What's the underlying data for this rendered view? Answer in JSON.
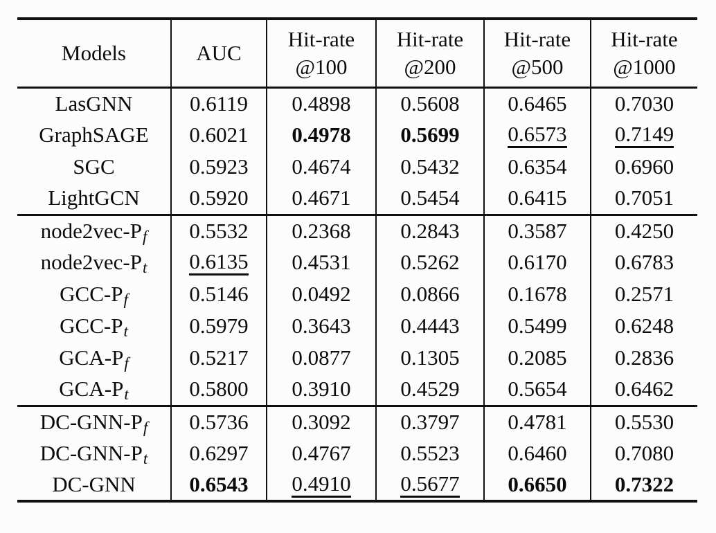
{
  "colors": {
    "text": "#0b0b0b",
    "rule": "#101010",
    "background": "#fcfcfc"
  },
  "header": {
    "models": "Models",
    "auc": "AUC",
    "hitrate_label": "Hit-rate",
    "hitrate_at": [
      "@100",
      "@200",
      "@500",
      "@1000"
    ]
  },
  "groups": [
    {
      "rows": [
        {
          "model": "LasGNN",
          "sub": "",
          "cells": [
            [
              "0.6119",
              "normal"
            ],
            [
              "0.4898",
              "normal"
            ],
            [
              "0.5608",
              "normal"
            ],
            [
              "0.6465",
              "normal"
            ],
            [
              "0.7030",
              "normal"
            ]
          ]
        },
        {
          "model": "GraphSAGE",
          "sub": "",
          "cells": [
            [
              "0.6021",
              "normal"
            ],
            [
              "0.4978",
              "bold"
            ],
            [
              "0.5699",
              "bold"
            ],
            [
              "0.6573",
              "underline"
            ],
            [
              "0.7149",
              "underline"
            ]
          ]
        },
        {
          "model": "SGC",
          "sub": "",
          "cells": [
            [
              "0.5923",
              "normal"
            ],
            [
              "0.4674",
              "normal"
            ],
            [
              "0.5432",
              "normal"
            ],
            [
              "0.6354",
              "normal"
            ],
            [
              "0.6960",
              "normal"
            ]
          ]
        },
        {
          "model": "LightGCN",
          "sub": "",
          "cells": [
            [
              "0.5920",
              "normal"
            ],
            [
              "0.4671",
              "normal"
            ],
            [
              "0.5454",
              "normal"
            ],
            [
              "0.6415",
              "normal"
            ],
            [
              "0.7051",
              "normal"
            ]
          ]
        }
      ]
    },
    {
      "rows": [
        {
          "model": "node2vec-P",
          "sub": "f",
          "cells": [
            [
              "0.5532",
              "normal"
            ],
            [
              "0.2368",
              "normal"
            ],
            [
              "0.2843",
              "normal"
            ],
            [
              "0.3587",
              "normal"
            ],
            [
              "0.4250",
              "normal"
            ]
          ]
        },
        {
          "model": "node2vec-P",
          "sub": "t",
          "cells": [
            [
              "0.6135",
              "underline"
            ],
            [
              "0.4531",
              "normal"
            ],
            [
              "0.5262",
              "normal"
            ],
            [
              "0.6170",
              "normal"
            ],
            [
              "0.6783",
              "normal"
            ]
          ]
        },
        {
          "model": "GCC-P",
          "sub": "f",
          "cells": [
            [
              "0.5146",
              "normal"
            ],
            [
              "0.0492",
              "normal"
            ],
            [
              "0.0866",
              "normal"
            ],
            [
              "0.1678",
              "normal"
            ],
            [
              "0.2571",
              "normal"
            ]
          ]
        },
        {
          "model": "GCC-P",
          "sub": "t",
          "cells": [
            [
              "0.5979",
              "normal"
            ],
            [
              "0.3643",
              "normal"
            ],
            [
              "0.4443",
              "normal"
            ],
            [
              "0.5499",
              "normal"
            ],
            [
              "0.6248",
              "normal"
            ]
          ]
        },
        {
          "model": "GCA-P",
          "sub": "f",
          "cells": [
            [
              "0.5217",
              "normal"
            ],
            [
              "0.0877",
              "normal"
            ],
            [
              "0.1305",
              "normal"
            ],
            [
              "0.2085",
              "normal"
            ],
            [
              "0.2836",
              "normal"
            ]
          ]
        },
        {
          "model": "GCA-P",
          "sub": "t",
          "cells": [
            [
              "0.5800",
              "normal"
            ],
            [
              "0.3910",
              "normal"
            ],
            [
              "0.4529",
              "normal"
            ],
            [
              "0.5654",
              "normal"
            ],
            [
              "0.6462",
              "normal"
            ]
          ]
        }
      ]
    },
    {
      "rows": [
        {
          "model": "DC-GNN-P",
          "sub": "f",
          "cells": [
            [
              "0.5736",
              "normal"
            ],
            [
              "0.3092",
              "normal"
            ],
            [
              "0.3797",
              "normal"
            ],
            [
              "0.4781",
              "normal"
            ],
            [
              "0.5530",
              "normal"
            ]
          ]
        },
        {
          "model": "DC-GNN-P",
          "sub": "t",
          "cells": [
            [
              "0.6297",
              "normal"
            ],
            [
              "0.4767",
              "normal"
            ],
            [
              "0.5523",
              "normal"
            ],
            [
              "0.6460",
              "normal"
            ],
            [
              "0.7080",
              "normal"
            ]
          ]
        },
        {
          "model": "DC-GNN",
          "sub": "",
          "cells": [
            [
              "0.6543",
              "bold"
            ],
            [
              "0.4910",
              "underline"
            ],
            [
              "0.5677",
              "underline"
            ],
            [
              "0.6650",
              "bold"
            ],
            [
              "0.7322",
              "bold"
            ]
          ]
        }
      ]
    }
  ]
}
